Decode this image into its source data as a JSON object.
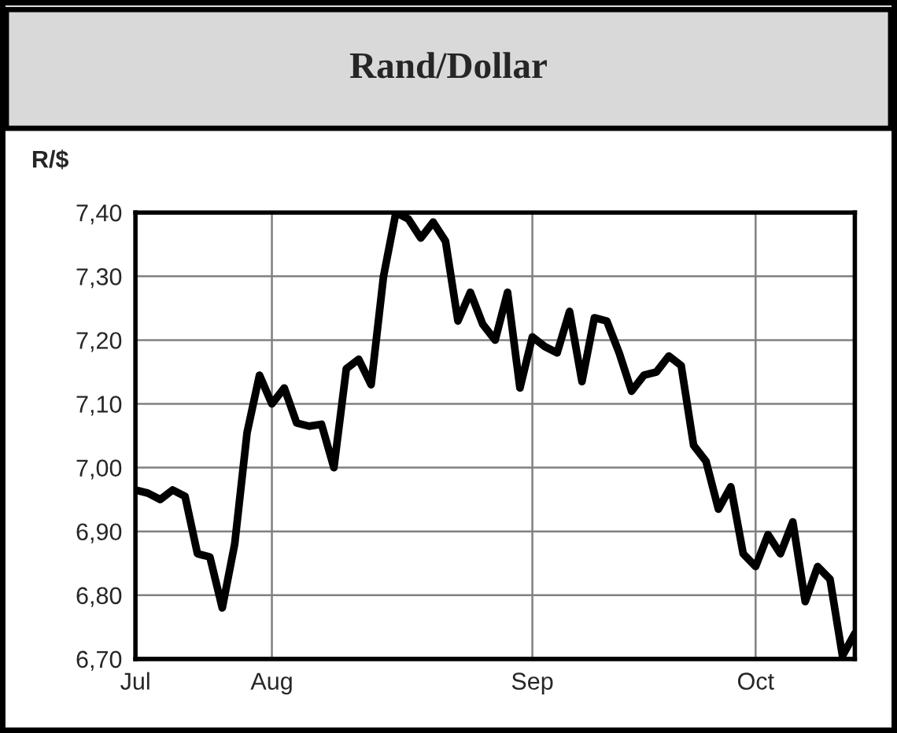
{
  "chart_data": {
    "type": "line",
    "title": "Rand/Dollar",
    "ylabel": "R/$",
    "categories": [
      "Jul",
      null,
      null,
      null,
      null,
      null,
      null,
      null,
      null,
      null,
      null,
      "Aug",
      null,
      null,
      null,
      null,
      null,
      null,
      null,
      null,
      null,
      null,
      null,
      null,
      null,
      null,
      null,
      null,
      null,
      null,
      null,
      null,
      "Sep",
      null,
      null,
      null,
      null,
      null,
      null,
      null,
      null,
      null,
      null,
      null,
      null,
      null,
      null,
      null,
      null,
      null,
      "Oct",
      null,
      null,
      null,
      null,
      null,
      null,
      null,
      null
    ],
    "series": [
      {
        "color": "#000000",
        "values": [
          6.965,
          6.96,
          6.95,
          6.965,
          6.955,
          6.865,
          6.86,
          6.78,
          6.88,
          7.055,
          7.145,
          7.1,
          7.125,
          7.07,
          7.065,
          7.068,
          7.0,
          7.155,
          7.17,
          7.13,
          7.3,
          7.4,
          7.39,
          7.36,
          7.385,
          7.355,
          7.23,
          7.275,
          7.225,
          7.2,
          7.275,
          7.125,
          7.205,
          7.19,
          7.18,
          7.245,
          7.135,
          7.235,
          7.23,
          7.18,
          7.12,
          7.145,
          7.15,
          7.175,
          7.16,
          7.035,
          7.01,
          6.935,
          6.97,
          6.865,
          6.845,
          6.895,
          6.865,
          6.915,
          6.79,
          6.845,
          6.825,
          6.705,
          6.74
        ]
      }
    ],
    "ylim": [
      6.7,
      7.4
    ],
    "yticks": [
      {
        "value": 6.7,
        "label": "6,70"
      },
      {
        "value": 6.8,
        "label": "6,80"
      },
      {
        "value": 6.9,
        "label": "6,90"
      },
      {
        "value": 7.0,
        "label": "7,00"
      },
      {
        "value": 7.1,
        "label": "7,10"
      },
      {
        "value": 7.2,
        "label": "7,20"
      },
      {
        "value": 7.3,
        "label": "7,30"
      },
      {
        "value": 7.4,
        "label": "7,40"
      }
    ],
    "grid": true,
    "line_style": "solid",
    "marker": "none"
  }
}
